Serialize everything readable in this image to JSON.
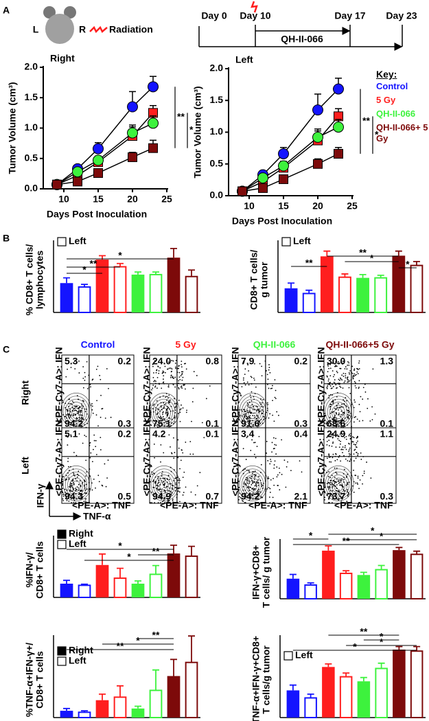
{
  "panels": [
    "A",
    "B",
    "C"
  ],
  "mouse": {
    "left": "L",
    "right": "R",
    "label": "Radiation"
  },
  "timeline": {
    "days": [
      "Day 0",
      "Day 10",
      "Day 17",
      "Day 23"
    ],
    "treatment": "QH-II-066"
  },
  "chart_data": [
    {
      "type": "line",
      "title": "Right",
      "xlabel": "Days Post Inoculation",
      "ylabel": "Tumor Volume (cm³)",
      "x": [
        9,
        12,
        15,
        20,
        23
      ],
      "xlim": [
        7,
        25
      ],
      "ylim": [
        0,
        2
      ],
      "xticks": [
        10,
        15,
        20,
        25
      ],
      "yticks": [
        {
          "value": 0,
          "label": "0.0"
        },
        {
          "value": 0.5,
          "label": "0.5"
        },
        {
          "value": 1,
          "label": "1.0"
        },
        {
          "value": 1.5,
          "label": "1.5"
        },
        {
          "value": 2,
          "label": "2.0"
        }
      ],
      "series": [
        {
          "color": "#1414ff",
          "marker": "circle",
          "values": [
            0.07,
            0.33,
            0.66,
            1.35,
            1.68
          ],
          "errors": [
            0.01,
            0.05,
            0.1,
            0.25,
            0.17
          ]
        },
        {
          "color": "#ff1e1e",
          "marker": "square",
          "values": [
            0.07,
            0.22,
            0.44,
            0.87,
            1.25
          ],
          "errors": [
            0.01,
            0.04,
            0.08,
            0.15,
            0.12
          ]
        },
        {
          "color": "#3df23d",
          "marker": "circle",
          "values": [
            0.07,
            0.28,
            0.47,
            0.92,
            1.08
          ],
          "errors": [
            0.01,
            0.04,
            0.07,
            0.13,
            0.12
          ]
        },
        {
          "color": "#7d0a0a",
          "marker": "square",
          "values": [
            0.07,
            0.12,
            0.26,
            0.52,
            0.67
          ],
          "errors": [
            0.01,
            0.03,
            0.05,
            0.08,
            0.13
          ]
        }
      ],
      "significance": [
        "**",
        "*"
      ]
    },
    {
      "type": "line",
      "title": "Left",
      "xlabel": "Days Post Inoculation",
      "ylabel": "Tumor Volume (cm³)",
      "x": [
        9,
        12,
        15,
        20,
        23
      ],
      "xlim": [
        7,
        25
      ],
      "ylim": [
        0,
        2
      ],
      "xticks": [
        10,
        15,
        20,
        25
      ],
      "yticks": [
        {
          "value": 0,
          "label": "0.0"
        },
        {
          "value": 0.5,
          "label": "0.5"
        },
        {
          "value": 1,
          "label": "1.0"
        },
        {
          "value": 1.5,
          "label": "1.5"
        },
        {
          "value": 2,
          "label": "2.0"
        }
      ],
      "legend_title": "Key:",
      "series": [
        {
          "name": "Control",
          "color": "#1414ff",
          "marker": "circle",
          "values": [
            0.07,
            0.33,
            0.66,
            1.35,
            1.68
          ],
          "errors": [
            0.01,
            0.05,
            0.1,
            0.25,
            0.17
          ]
        },
        {
          "name": "5 Gy",
          "color": "#ff1e1e",
          "marker": "square",
          "values": [
            0.07,
            0.22,
            0.44,
            0.87,
            1.25
          ],
          "errors": [
            0.01,
            0.04,
            0.08,
            0.15,
            0.12
          ]
        },
        {
          "name": "QH-II-066",
          "color": "#3df23d",
          "marker": "circle",
          "values": [
            0.07,
            0.28,
            0.47,
            0.92,
            1.08
          ],
          "errors": [
            0.01,
            0.04,
            0.07,
            0.13,
            0.12
          ]
        },
        {
          "name": "QH-II-066+ 5 Gy",
          "color": "#7d0a0a",
          "marker": "square",
          "values": [
            0.07,
            0.12,
            0.26,
            0.5,
            0.66
          ],
          "errors": [
            0.01,
            0.03,
            0.05,
            0.08,
            0.1
          ]
        }
      ],
      "significance": [
        "**",
        "*"
      ]
    },
    {
      "type": "bar",
      "ylabel": [
        "% CD8+ T cells/",
        "lymphocytes"
      ],
      "ylim": [
        0,
        100
      ],
      "colors": [
        "#1414ff",
        "#ff1e1e",
        "#3df23d",
        "#7d0a0a"
      ],
      "series": [
        {
          "fill": "solid",
          "values": [
            45,
            81,
            58,
            84
          ],
          "errors": [
            8,
            6,
            4,
            14
          ]
        },
        {
          "name": "Left",
          "fill": "hollow",
          "values": [
            39,
            70,
            58,
            55
          ],
          "errors": [
            4,
            5,
            4,
            10
          ]
        }
      ],
      "significance": [
        "*",
        "**",
        "*"
      ]
    },
    {
      "type": "bar",
      "ylabel": [
        "CD8+ T cells/",
        "g tumor"
      ],
      "ylim": [
        0,
        100
      ],
      "colors": [
        "#1414ff",
        "#ff1e1e",
        "#3df23d",
        "#7d0a0a"
      ],
      "series": [
        {
          "fill": "solid",
          "values": [
            37,
            86,
            53,
            87
          ],
          "errors": [
            8,
            8,
            5,
            7
          ]
        },
        {
          "name": "Left",
          "fill": "hollow",
          "values": [
            29,
            54,
            53,
            72
          ],
          "errors": [
            5,
            5,
            4,
            6
          ]
        }
      ],
      "significance": [
        "**",
        "**",
        "*",
        "*"
      ]
    },
    {
      "type": "bar",
      "ylabel": [
        "%IFN-γ/",
        "CD8+ T cells"
      ],
      "ylim": [
        0,
        100
      ],
      "colors": [
        "#1414ff",
        "#ff1e1e",
        "#3df23d",
        "#7d0a0a"
      ],
      "series": [
        {
          "name": "Right",
          "fill": "solid",
          "values": [
            25,
            59,
            25,
            80
          ],
          "errors": [
            6,
            20,
            5,
            15
          ]
        },
        {
          "name": "Left",
          "fill": "hollow",
          "values": [
            22,
            35,
            42,
            75
          ],
          "errors": [
            2,
            18,
            16,
            18
          ]
        }
      ],
      "significance": [
        "*",
        "**",
        "*"
      ]
    },
    {
      "type": "bar",
      "ylabel": [
        "IFN-γ+CD8+",
        "T cells/ g tumor"
      ],
      "ylim": [
        0,
        100
      ],
      "colors": [
        "#1414ff",
        "#ff1e1e",
        "#3df23d",
        "#7d0a0a"
      ],
      "series": [
        {
          "fill": "solid",
          "values": [
            38,
            91,
            45,
            92
          ],
          "errors": [
            8,
            9,
            5,
            5
          ]
        },
        {
          "fill": "hollow",
          "values": [
            26,
            48,
            55,
            84
          ],
          "errors": [
            4,
            5,
            8,
            6
          ]
        }
      ],
      "significance": [
        "*",
        "*",
        "*",
        "**"
      ]
    },
    {
      "type": "bar",
      "ylabel": [
        "%TNF-α+IFN-γ+/",
        "CD8+ T cells"
      ],
      "ylim": [
        0,
        100
      ],
      "colors": [
        "#1414ff",
        "#ff1e1e",
        "#3df23d",
        "#7d0a0a"
      ],
      "series": [
        {
          "name": "Right",
          "fill": "solid",
          "values": [
            9,
            23,
            12,
            55
          ],
          "errors": [
            3,
            8,
            3,
            22
          ]
        },
        {
          "name": "Left",
          "fill": "hollow",
          "values": [
            7,
            27,
            36,
            73
          ],
          "errors": [
            2,
            15,
            27,
            35
          ]
        }
      ],
      "significance": [
        "**",
        "*",
        "**"
      ]
    },
    {
      "type": "bar",
      "ylabel": [
        "TNF-α+IFN-γ+CD8+",
        "T cells/g tumor"
      ],
      "ylim": [
        0,
        100
      ],
      "colors": [
        "#1414ff",
        "#ff1e1e",
        "#3df23d",
        "#7d0a0a"
      ],
      "series": [
        {
          "fill": "solid",
          "values": [
            36,
            67,
            48,
            90
          ],
          "errors": [
            7,
            4,
            5,
            4
          ]
        },
        {
          "name": "Left",
          "fill": "hollow",
          "values": [
            26,
            54,
            65,
            88
          ],
          "errors": [
            5,
            5,
            7,
            6
          ]
        }
      ],
      "significance": [
        "**",
        "*",
        "*",
        "*"
      ]
    }
  ],
  "flow": {
    "groups": [
      {
        "name": "Control",
        "color": "#1414ff"
      },
      {
        "name": "5 Gy",
        "color": "#ff1e1e"
      },
      {
        "name": "QH-II-066",
        "color": "#3df23d"
      },
      {
        "name": "QH-II-066+5 Gy",
        "color": "#7d0a0a"
      }
    ],
    "rows": [
      "Right",
      "Left"
    ],
    "y_axis": "IFN-γ",
    "x_axis": "TNF-α",
    "plot_ylabel": "<PE-Cy7-A>: IFN",
    "plot_xlabel": "<PE-A>: TNF",
    "plots": [
      [
        [
          "5.3",
          "0.2",
          "94.2",
          "0.3"
        ],
        [
          "24.0",
          "0.8",
          "75.1",
          "0.1"
        ],
        [
          "7.9",
          "0.2",
          "91.6",
          "0.3"
        ],
        [
          "30.0",
          "1.3",
          "68.6",
          "0.1"
        ]
      ],
      [
        [
          "5.1",
          "0.2",
          "94.3",
          "0.5"
        ],
        [
          "4.2",
          "0.1",
          "94.9",
          "0.7"
        ],
        [
          "3.4",
          "0.4",
          "94.2",
          "2.1"
        ],
        [
          "24.9",
          "1.1",
          "73.7",
          "0.3"
        ]
      ]
    ]
  }
}
